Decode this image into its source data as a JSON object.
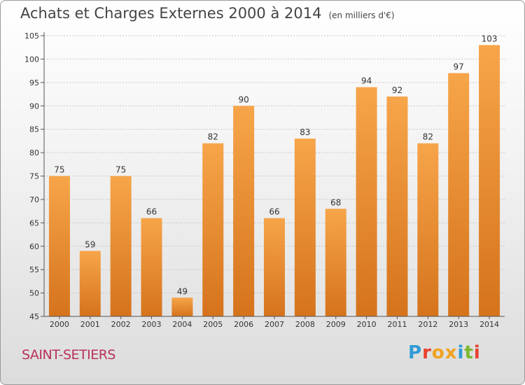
{
  "header": {
    "title": "Achats et Charges Externes 2000 à 2014",
    "subtitle": "(en milliers d'€)"
  },
  "footer": {
    "place": "SAINT-SETIERS",
    "logo_text": "Proxiti",
    "logo_colors": [
      "#2f9bd6",
      "#e8402c",
      "#f0a21d",
      "#f0a21d",
      "#2f9bd6",
      "#7ab82e",
      "#e8402c"
    ]
  },
  "colors": {
    "bar_light": "#f7a54a",
    "bar_dark": "#d5731c",
    "grid": "#c8c8c8",
    "axis_text": "#333333"
  },
  "chart_data": {
    "type": "bar",
    "categories": [
      "2000",
      "2001",
      "2002",
      "2003",
      "2004",
      "2005",
      "2006",
      "2007",
      "2008",
      "2009",
      "2010",
      "2011",
      "2012",
      "2013",
      "2014"
    ],
    "values": [
      75,
      59,
      75,
      66,
      49,
      82,
      90,
      66,
      83,
      68,
      94,
      92,
      82,
      97,
      103
    ],
    "title": "Achats et Charges Externes 2000 à 2014",
    "subtitle": "(en milliers d'€)",
    "xlabel": "",
    "ylabel": "",
    "ylim": [
      45,
      105
    ],
    "yticks": [
      45,
      50,
      55,
      60,
      65,
      70,
      75,
      80,
      85,
      90,
      95,
      100,
      105
    ],
    "grid": true,
    "legend": "none"
  }
}
